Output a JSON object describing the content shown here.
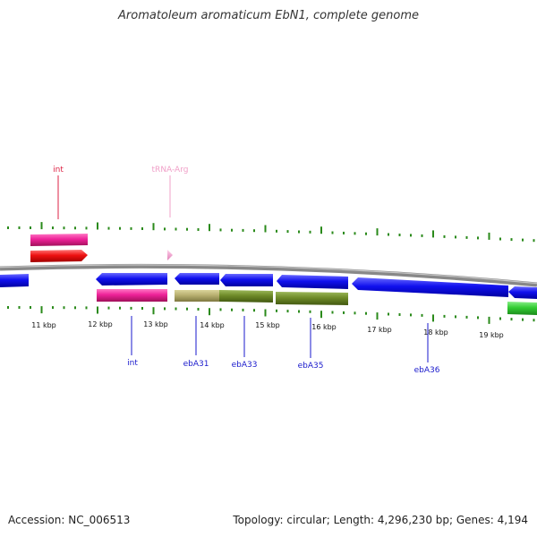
{
  "title": "Aromatoleum aromaticum EbN1, complete genome",
  "footer": {
    "accession": "Accession: NC_006513",
    "stats": "Topology: circular; Length: 4,296,230 bp; Genes: 4,194"
  },
  "ticks": [
    "11 kbp",
    "12 kbp",
    "13 kbp",
    "14 kbp",
    "15 kbp",
    "16 kbp",
    "17 kbp",
    "18 kbp",
    "19 kbp"
  ],
  "top_labels": [
    {
      "text": "int",
      "color": "#dd2244"
    },
    {
      "text": "tRNA-Arg",
      "color": "#f0a0c8"
    }
  ],
  "bottom_labels": [
    {
      "text": "int",
      "color": "#1a1acc"
    },
    {
      "text": "ebA31",
      "color": "#1a1acc"
    },
    {
      "text": "ebA33",
      "color": "#1a1acc"
    },
    {
      "text": "ebA35",
      "color": "#1a1acc"
    },
    {
      "text": "ebA36",
      "color": "#1a1acc"
    }
  ],
  "colors": {
    "backbone": "#888888",
    "cds": "#1010ee",
    "gene_pink": "#ee2299",
    "gene_red": "#ee1111",
    "trna": "#f4a8d0",
    "khaki": "#b8b070",
    "olive": "#6e8a28",
    "green": "#33cc33",
    "tick_green": "#2a8a1a"
  }
}
